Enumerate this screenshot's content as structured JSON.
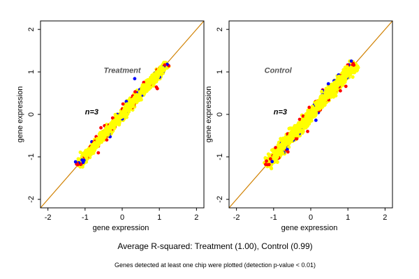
{
  "chart_data": [
    {
      "type": "scatter",
      "panel_label": "Treatment",
      "n_label": "n=3",
      "xlabel": "gene expression",
      "ylabel": "gene expression",
      "xlim": [
        -2.2,
        2.2
      ],
      "ylim": [
        -2.2,
        2.2
      ],
      "x_ticks": [
        -2,
        -1,
        0,
        1,
        2
      ],
      "y_ticks": [
        -2,
        -1,
        0,
        1,
        2
      ],
      "diagonal_line": {
        "slope": 1,
        "intercept": 0,
        "color": "#d08000"
      },
      "point_cloud": {
        "x_range": [
          -1.2,
          1.2
        ],
        "spread_sd": 0.06
      },
      "series": [
        {
          "color": "#ffff00",
          "share": "majority"
        },
        {
          "color": "#ff0000",
          "share": "few"
        },
        {
          "color": "#0000ff",
          "share": "few"
        }
      ]
    },
    {
      "type": "scatter",
      "panel_label": "Control",
      "n_label": "n=3",
      "xlabel": "gene expression",
      "ylabel": "gene expression",
      "xlim": [
        -2.2,
        2.2
      ],
      "ylim": [
        -2.2,
        2.2
      ],
      "x_ticks": [
        -2,
        -1,
        0,
        1,
        2
      ],
      "y_ticks": [
        -2,
        -1,
        0,
        1,
        2
      ],
      "diagonal_line": {
        "slope": 1,
        "intercept": 0,
        "color": "#d08000"
      },
      "point_cloud": {
        "x_range": [
          -1.2,
          1.2
        ],
        "spread_sd": 0.08
      },
      "series": [
        {
          "color": "#ffff00",
          "share": "majority"
        },
        {
          "color": "#ff0000",
          "share": "few"
        },
        {
          "color": "#0000ff",
          "share": "few"
        }
      ]
    }
  ],
  "caption": {
    "main": "Average R-squared: Treatment (1.00), Control (0.99)",
    "sub": "Genes detected at least one chip were plotted (detection p-value < 0.01)"
  }
}
